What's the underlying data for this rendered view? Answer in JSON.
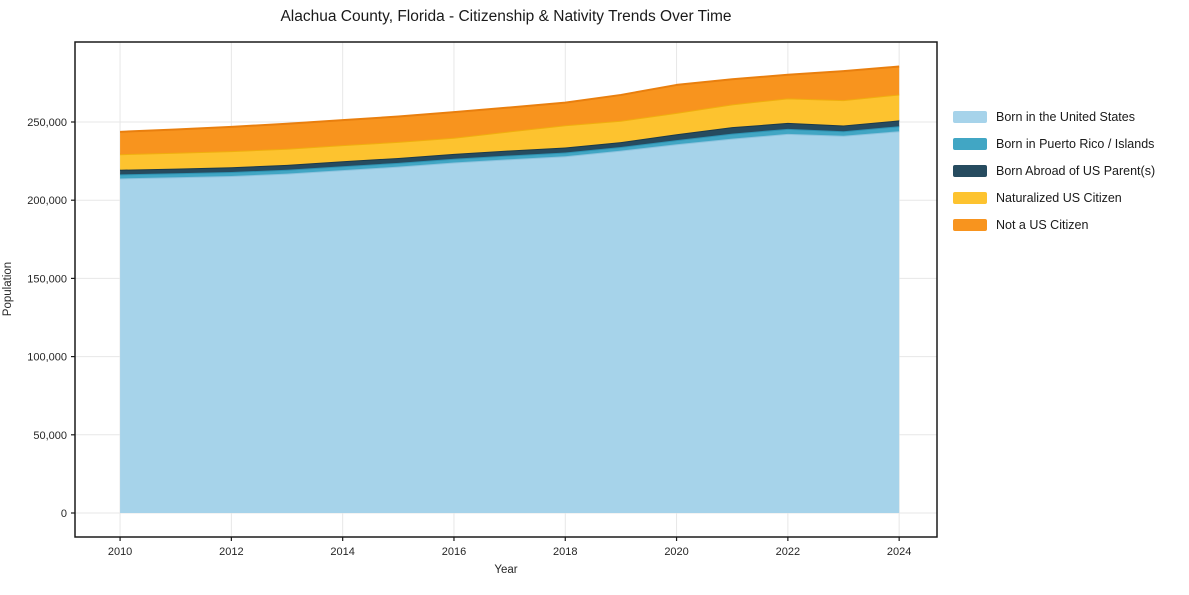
{
  "page": {
    "background": "#ffffff"
  },
  "chart_data": {
    "type": "area",
    "stacked": true,
    "title": "Alachua County, Florida - Citizenship & Nativity Trends Over Time",
    "xlabel": "Year",
    "ylabel": "Population",
    "x": [
      2010,
      2011,
      2012,
      2013,
      2014,
      2015,
      2016,
      2017,
      2018,
      2019,
      2020,
      2021,
      2022,
      2023,
      2024
    ],
    "series": [
      {
        "name": "Born in the United States",
        "color": "#a6d3ea",
        "edge": "#8cc3de",
        "values": [
          213900,
          214700,
          215500,
          217000,
          219200,
          221500,
          224100,
          226200,
          228100,
          231700,
          235800,
          239400,
          242400,
          241200,
          244100
        ]
      },
      {
        "name": "Born in Puerto Rico / Islands",
        "color": "#41a6c4",
        "edge": "#2d92b2",
        "values": [
          2600,
          2500,
          2500,
          2500,
          2500,
          2400,
          2400,
          2400,
          2400,
          2300,
          2600,
          3200,
          3200,
          2900,
          3200
        ]
      },
      {
        "name": "Born Abroad of US Parent(s)",
        "color": "#264b5f",
        "edge": "#1b3a4b",
        "values": [
          3000,
          3000,
          3100,
          3100,
          3200,
          3100,
          3100,
          3200,
          3200,
          3100,
          3800,
          4100,
          3800,
          3700,
          3700
        ]
      },
      {
        "name": "Naturalized US Citizen",
        "color": "#fdc32f",
        "edge": "#f0ae0e",
        "values": [
          9900,
          10100,
          10300,
          10300,
          10300,
          10300,
          10300,
          12200,
          14200,
          13700,
          13600,
          14600,
          15700,
          16200,
          16600
        ]
      },
      {
        "name": "Not a US Citizen",
        "color": "#f8941e",
        "edge": "#e97f0e",
        "values": [
          14300,
          14900,
          15500,
          16000,
          16000,
          16200,
          16400,
          15300,
          14500,
          16500,
          17900,
          16000,
          15100,
          18500,
          17900
        ]
      }
    ],
    "x_ticks": [
      2010,
      2012,
      2014,
      2016,
      2018,
      2020,
      2022,
      2024
    ],
    "y_ticks": [
      "0",
      "50,000",
      "100,000",
      "150,000",
      "200,000",
      "250,000"
    ],
    "y_tick_values": [
      0,
      50000,
      100000,
      150000,
      200000,
      250000
    ],
    "xlim": [
      2009.19,
      2024.68
    ],
    "ylim": [
      -15345,
      301150
    ],
    "grid": true,
    "grid_color": "#e7e7e7",
    "frame_color": "#1a1a1a",
    "tick_label_color": "#262626",
    "legend_position": "right-outside"
  }
}
